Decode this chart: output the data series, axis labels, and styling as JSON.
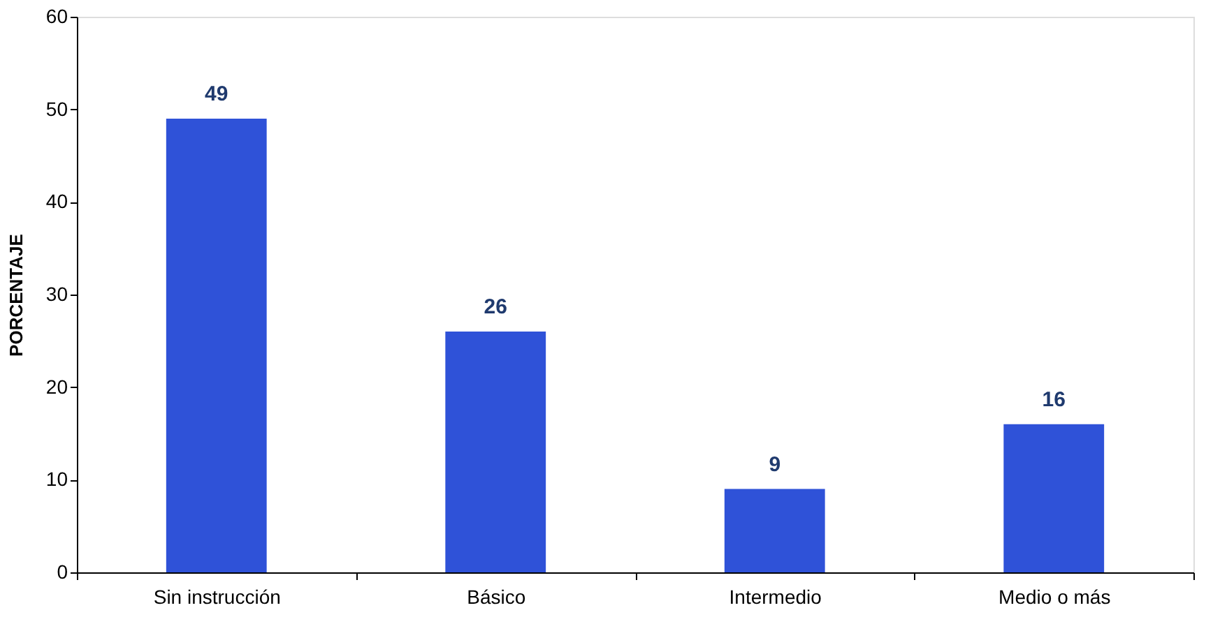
{
  "chart_data": {
    "type": "bar",
    "ylabel": "PORCENTAJE",
    "categories": [
      "Sin instrucción",
      "Básico",
      "Intermedio",
      "Medio o más"
    ],
    "values": [
      49,
      26,
      9,
      16
    ],
    "color": "#2f52d8",
    "ylim": [
      0,
      60
    ],
    "yticks": [
      0,
      10,
      20,
      30,
      40,
      50,
      60
    ],
    "grid": false,
    "data_labels": true
  }
}
